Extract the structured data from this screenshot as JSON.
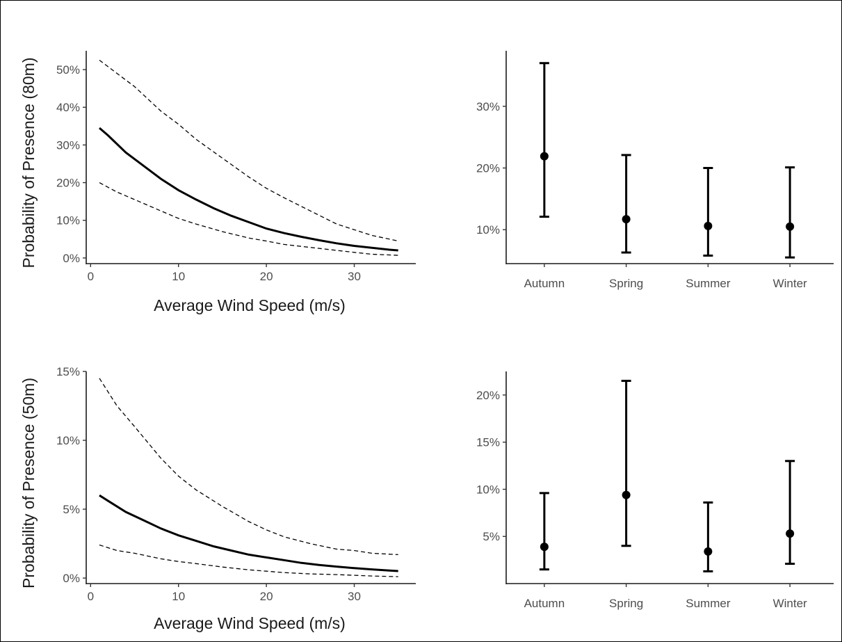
{
  "chart_data": [
    {
      "id": "wind80",
      "type": "line",
      "xlabel": "Average Wind Speed (m/s)",
      "ylabel": "Probability of Presence (80m)",
      "xlim": [
        -0.5,
        37
      ],
      "ylim": [
        -0.015,
        0.55
      ],
      "xticks": [
        0,
        10,
        20,
        30
      ],
      "yticks": [
        0,
        0.1,
        0.2,
        0.3,
        0.4,
        0.5
      ],
      "ytick_format": "percent",
      "grid": false,
      "series": [
        {
          "role": "upper",
          "style": "dashed",
          "x": [
            1,
            3,
            5,
            8,
            10,
            12,
            15,
            18,
            20,
            22,
            25,
            28,
            30,
            32,
            35
          ],
          "y": [
            0.525,
            0.49,
            0.455,
            0.39,
            0.355,
            0.315,
            0.265,
            0.215,
            0.185,
            0.16,
            0.125,
            0.09,
            0.075,
            0.06,
            0.045
          ]
        },
        {
          "role": "fit",
          "style": "solid",
          "x": [
            1,
            2,
            4,
            6,
            8,
            10,
            12,
            14,
            16,
            18,
            20,
            22,
            24,
            26,
            28,
            30,
            32,
            34,
            35
          ],
          "y": [
            0.345,
            0.325,
            0.28,
            0.245,
            0.21,
            0.18,
            0.155,
            0.132,
            0.112,
            0.095,
            0.078,
            0.066,
            0.056,
            0.047,
            0.039,
            0.032,
            0.027,
            0.022,
            0.02
          ]
        },
        {
          "role": "lower",
          "style": "dashed",
          "x": [
            1,
            3,
            5,
            8,
            10,
            12,
            15,
            18,
            20,
            22,
            25,
            28,
            30,
            32,
            35
          ],
          "y": [
            0.2,
            0.175,
            0.155,
            0.125,
            0.105,
            0.09,
            0.07,
            0.053,
            0.045,
            0.036,
            0.028,
            0.02,
            0.015,
            0.01,
            0.007
          ]
        }
      ]
    },
    {
      "id": "season80",
      "type": "errorbar",
      "categories": [
        "Autumn",
        "Spring",
        "Summer",
        "Winter"
      ],
      "values": [
        0.219,
        0.117,
        0.106,
        0.105
      ],
      "lower": [
        0.121,
        0.063,
        0.058,
        0.055
      ],
      "upper": [
        0.37,
        0.221,
        0.2,
        0.201
      ],
      "ylim": [
        0.045,
        0.39
      ],
      "yticks": [
        0.1,
        0.2,
        0.3
      ],
      "ytick_format": "percent",
      "grid": false
    },
    {
      "id": "wind50",
      "type": "line",
      "xlabel": "Average Wind Speed (m/s)",
      "ylabel": "Probability of Presence (50m)",
      "xlim": [
        -0.5,
        37
      ],
      "ylim": [
        -0.004,
        0.15
      ],
      "xticks": [
        0,
        10,
        20,
        30
      ],
      "yticks": [
        0,
        0.05,
        0.1,
        0.15
      ],
      "ytick_format": "percent",
      "grid": false,
      "series": [
        {
          "role": "upper",
          "style": "dashed",
          "x": [
            1,
            3,
            5,
            8,
            10,
            12,
            15,
            18,
            20,
            22,
            25,
            28,
            30,
            32,
            35
          ],
          "y": [
            0.145,
            0.125,
            0.11,
            0.087,
            0.074,
            0.064,
            0.052,
            0.041,
            0.035,
            0.03,
            0.025,
            0.021,
            0.02,
            0.018,
            0.017
          ]
        },
        {
          "role": "fit",
          "style": "solid",
          "x": [
            1,
            2,
            4,
            6,
            8,
            10,
            12,
            14,
            16,
            18,
            20,
            22,
            24,
            26,
            28,
            30,
            32,
            34,
            35
          ],
          "y": [
            0.06,
            0.056,
            0.048,
            0.042,
            0.036,
            0.031,
            0.027,
            0.023,
            0.02,
            0.017,
            0.015,
            0.013,
            0.011,
            0.0095,
            0.0083,
            0.0072,
            0.0063,
            0.0055,
            0.0051
          ]
        },
        {
          "role": "lower",
          "style": "dashed",
          "x": [
            1,
            3,
            5,
            8,
            10,
            12,
            15,
            18,
            20,
            22,
            25,
            28,
            30,
            32,
            35
          ],
          "y": [
            0.024,
            0.02,
            0.018,
            0.014,
            0.012,
            0.0105,
            0.008,
            0.006,
            0.005,
            0.004,
            0.003,
            0.0025,
            0.002,
            0.0015,
            0.001
          ]
        }
      ]
    },
    {
      "id": "season50",
      "type": "errorbar",
      "categories": [
        "Autumn",
        "Spring",
        "Summer",
        "Winter"
      ],
      "values": [
        0.039,
        0.094,
        0.034,
        0.053
      ],
      "lower": [
        0.015,
        0.04,
        0.013,
        0.021
      ],
      "upper": [
        0.096,
        0.215,
        0.086,
        0.13
      ],
      "ylim": [
        0.0,
        0.225
      ],
      "yticks": [
        0.05,
        0.1,
        0.15,
        0.2
      ],
      "ytick_format": "percent",
      "grid": false
    }
  ]
}
